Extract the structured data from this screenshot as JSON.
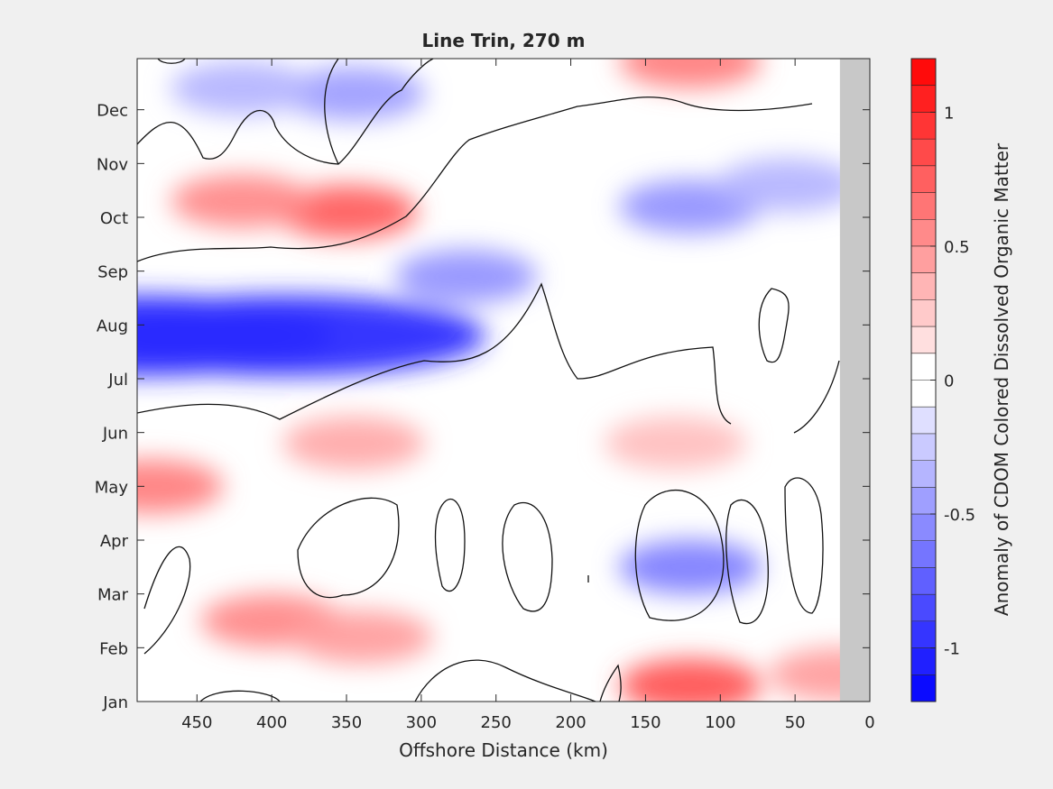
{
  "chart_data": {
    "type": "heatmap",
    "title": "Line Trin, 270 m",
    "xlabel": "Offshore Distance (km)",
    "ylabel": "",
    "colorbar_label": "Anomaly of CDOM Colored Dissolved Organic Matter",
    "x_reversed": true,
    "xlim": [
      0,
      490
    ],
    "xticks": [
      450,
      400,
      350,
      300,
      250,
      200,
      150,
      100,
      50,
      0
    ],
    "xtick_labels": [
      "450",
      "400",
      "350",
      "300",
      "250",
      "200",
      "150",
      "100",
      "50",
      "0"
    ],
    "ylim": [
      1,
      12.95
    ],
    "yticks": [
      1,
      2,
      3,
      4,
      5,
      6,
      7,
      8,
      9,
      10,
      11,
      12
    ],
    "ytick_labels": [
      "Jan",
      "Feb",
      "Mar",
      "Apr",
      "May",
      "Jun",
      "Jul",
      "Aug",
      "Sep",
      "Oct",
      "Nov",
      "Dec"
    ],
    "clim": [
      -1.2,
      1.2
    ],
    "colorbar_ticks": [
      -1,
      -0.5,
      0,
      0.5,
      1
    ],
    "colorbar_tick_labels": [
      "-1",
      "-0.5",
      "0",
      "0.5",
      "1"
    ],
    "colormap": "blue-white-red",
    "nodata_region": {
      "x_from": 0,
      "x_to": 20,
      "color": "#c8c8c8"
    },
    "zero_contour": true,
    "anomaly_features": [
      {
        "distance_km": 390,
        "month": 7.8,
        "value": -1.0
      },
      {
        "distance_km": 490,
        "month": 7.8,
        "value": -1.0
      },
      {
        "distance_km": 270,
        "month": 8.9,
        "value": -0.5
      },
      {
        "distance_km": 120,
        "month": 10.2,
        "value": -0.5
      },
      {
        "distance_km": 55,
        "month": 10.6,
        "value": -0.35
      },
      {
        "distance_km": 120,
        "month": 3.5,
        "value": -0.6
      },
      {
        "distance_km": 345,
        "month": 12.3,
        "value": -0.45
      },
      {
        "distance_km": 420,
        "month": 12.4,
        "value": -0.35
      },
      {
        "distance_km": 350,
        "month": 10.1,
        "value": 0.75
      },
      {
        "distance_km": 420,
        "month": 10.3,
        "value": 0.55
      },
      {
        "distance_km": 480,
        "month": 5.0,
        "value": 0.6
      },
      {
        "distance_km": 120,
        "month": 1.3,
        "value": 0.8
      },
      {
        "distance_km": 120,
        "month": 12.9,
        "value": 0.6
      },
      {
        "distance_km": 400,
        "month": 2.5,
        "value": 0.55
      },
      {
        "distance_km": 340,
        "month": 2.2,
        "value": 0.45
      },
      {
        "distance_km": 345,
        "month": 5.8,
        "value": 0.4
      },
      {
        "distance_km": 130,
        "month": 5.8,
        "value": 0.3
      },
      {
        "distance_km": 20,
        "month": 1.5,
        "value": 0.45
      }
    ]
  }
}
